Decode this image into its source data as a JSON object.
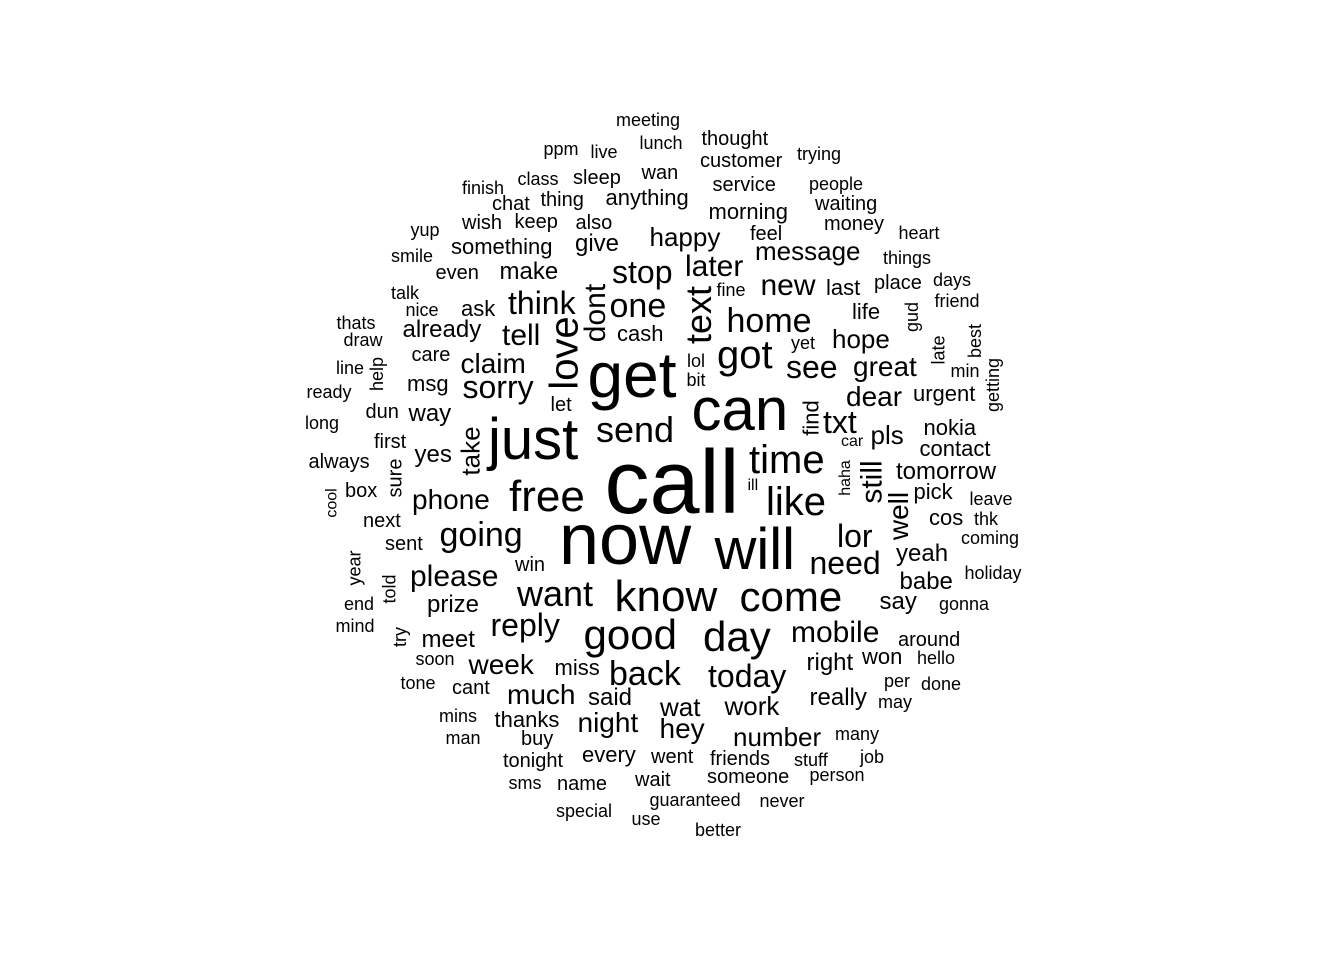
{
  "chart_data": {
    "type": "wordcloud",
    "words": [
      "call",
      "now",
      "can",
      "get",
      "will",
      "just",
      "free",
      "know",
      "good",
      "come",
      "day",
      "love",
      "got",
      "like",
      "time",
      "want",
      "send",
      "text",
      "going",
      "reply",
      "home",
      "sorry",
      "one",
      "dont",
      "mobile",
      "please",
      "need",
      "today",
      "back",
      "txt",
      "still",
      "stop",
      "later",
      "think",
      "new",
      "see",
      "tell",
      "lor",
      "great",
      "message",
      "hope",
      "happy",
      "week",
      "much",
      "number",
      "night",
      "hey",
      "phone",
      "claim",
      "well",
      "tomorrow",
      "dear",
      "wat",
      "work",
      "really",
      "take",
      "pls",
      "right",
      "say",
      "yeah",
      "prize",
      "meet",
      "babe",
      "make",
      "said",
      "every",
      "anything",
      "find",
      "yes",
      "contact",
      "morning",
      "give",
      "cash",
      "already",
      "way",
      "nokia",
      "urgent",
      "won",
      "pick",
      "cos",
      "ask",
      "something",
      "someone",
      "msg",
      "miss",
      "thanks",
      "went",
      "friends",
      "service",
      "sleep",
      "customer",
      "people",
      "life",
      "wait",
      "money",
      "place",
      "win",
      "also",
      "keep",
      "feel",
      "last",
      "care",
      "thought",
      "lunch",
      "wan",
      "meeting",
      "waiting",
      "things",
      "heart",
      "friend",
      "days",
      "late",
      "best",
      "min",
      "getting",
      "guaranteed",
      "never",
      "better",
      "special",
      "use",
      "name",
      "sms",
      "tonight",
      "buy",
      "man",
      "mins",
      "tone",
      "soon",
      "cant",
      "around",
      "hello",
      "done",
      "per",
      "may",
      "many",
      "stuff",
      "job",
      "person",
      "leave",
      "thk",
      "coming",
      "holiday",
      "gonna",
      "sent",
      "next",
      "box",
      "cool",
      "always",
      "long",
      "ready",
      "dun",
      "first",
      "help",
      "line",
      "draw",
      "thats",
      "talk",
      "nice",
      "smile",
      "yup",
      "wish",
      "chat",
      "thing",
      "class",
      "finish",
      "ppm",
      "live",
      "trying",
      "fine",
      "lol",
      "bit",
      "yet",
      "gud",
      "let",
      "car",
      "haha",
      "ill",
      "sure",
      "year",
      "told",
      "end",
      "mind",
      "try",
      "even"
    ]
  }
}
